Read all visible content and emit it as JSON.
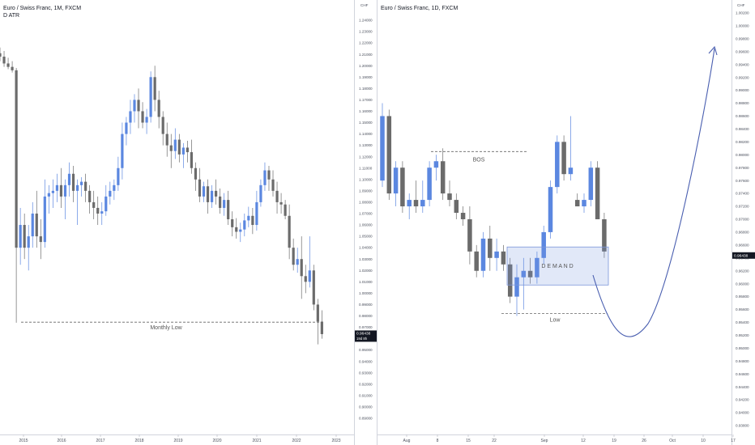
{
  "left_panel": {
    "title": "Euro / Swiss Franc, 1M, FXCM",
    "indicator": "D ATR",
    "price_badge": "0.96438",
    "countdown": "19d 8h",
    "annotation": "Monthly Low"
  },
  "right_panel": {
    "title": "Euro / Swiss Franc, 1D, FXCM",
    "currency": "CHF",
    "price_badge": "0.96438",
    "annotations": {
      "bos": "BOS",
      "demand": "D E M A N D",
      "low": "Low"
    }
  },
  "chart_data": [
    {
      "type": "candlestick",
      "title": "Euro / Swiss Franc, 1M, FXCM",
      "subtitle": "D ATR",
      "x_ticks": [
        "2015",
        "2016",
        "2017",
        "2018",
        "2019",
        "2020",
        "2021",
        "2022",
        "2023"
      ],
      "y_ticks": [
        "1.24000",
        "1.23000",
        "1.22000",
        "1.21000",
        "1.20000",
        "1.19000",
        "1.18000",
        "1.17000",
        "1.16000",
        "1.15000",
        "1.14000",
        "1.13000",
        "1.12000",
        "1.11000",
        "1.10000",
        "1.09000",
        "1.08000",
        "1.07000",
        "1.06000",
        "1.05000",
        "1.04000",
        "1.03000",
        "1.02000",
        "1.01000",
        "1.00000",
        "0.99000",
        "0.98000",
        "0.97000",
        "0.96000",
        "0.95000",
        "0.94000",
        "0.93000",
        "0.92000",
        "0.91000",
        "0.90000",
        "0.89000"
      ],
      "ylim": [
        0.885,
        1.245
      ],
      "monthly_low": 0.9745,
      "last_price": 0.96438,
      "candles": [
        [
          1.211,
          1.216,
          1.204,
          1.208
        ],
        [
          1.208,
          1.213,
          1.199,
          1.202
        ],
        [
          1.202,
          1.207,
          1.197,
          1.199
        ],
        [
          1.199,
          1.204,
          1.194,
          1.196
        ],
        [
          1.196,
          1.198,
          0.974,
          1.04
        ],
        [
          1.04,
          1.075,
          1.025,
          1.06
        ],
        [
          1.06,
          1.07,
          1.03,
          1.04
        ],
        [
          1.04,
          1.06,
          1.02,
          1.05
        ],
        [
          1.05,
          1.08,
          1.04,
          1.07
        ],
        [
          1.07,
          1.09,
          1.04,
          1.05
        ],
        [
          1.05,
          1.065,
          1.03,
          1.045
        ],
        [
          1.045,
          1.1,
          1.04,
          1.085
        ],
        [
          1.085,
          1.095,
          1.07,
          1.088
        ],
        [
          1.088,
          1.1,
          1.075,
          1.09
        ],
        [
          1.09,
          1.105,
          1.08,
          1.095
        ],
        [
          1.095,
          1.11,
          1.075,
          1.085
        ],
        [
          1.085,
          1.1,
          1.065,
          1.095
        ],
        [
          1.095,
          1.115,
          1.085,
          1.105
        ],
        [
          1.105,
          1.112,
          1.08,
          1.09
        ],
        [
          1.09,
          1.1,
          1.06,
          1.095
        ],
        [
          1.095,
          1.102,
          1.085,
          1.098
        ],
        [
          1.098,
          1.105,
          1.08,
          1.09
        ],
        [
          1.09,
          1.095,
          1.07,
          1.08
        ],
        [
          1.08,
          1.09,
          1.065,
          1.075
        ],
        [
          1.075,
          1.085,
          1.06,
          1.07
        ],
        [
          1.07,
          1.08,
          1.06,
          1.072
        ],
        [
          1.072,
          1.095,
          1.068,
          1.085
        ],
        [
          1.085,
          1.098,
          1.078,
          1.09
        ],
        [
          1.09,
          1.1,
          1.082,
          1.095
        ],
        [
          1.095,
          1.12,
          1.09,
          1.11
        ],
        [
          1.11,
          1.15,
          1.1,
          1.14
        ],
        [
          1.14,
          1.155,
          1.13,
          1.15
        ],
        [
          1.15,
          1.17,
          1.14,
          1.16
        ],
        [
          1.16,
          1.175,
          1.15,
          1.17
        ],
        [
          1.17,
          1.18,
          1.145,
          1.16
        ],
        [
          1.16,
          1.168,
          1.145,
          1.15
        ],
        [
          1.15,
          1.162,
          1.14,
          1.155
        ],
        [
          1.155,
          1.195,
          1.15,
          1.19
        ],
        [
          1.19,
          1.2,
          1.16,
          1.17
        ],
        [
          1.17,
          1.178,
          1.145,
          1.155
        ],
        [
          1.155,
          1.16,
          1.13,
          1.14
        ],
        [
          1.14,
          1.15,
          1.12,
          1.13
        ],
        [
          1.13,
          1.14,
          1.11,
          1.125
        ],
        [
          1.125,
          1.145,
          1.118,
          1.135
        ],
        [
          1.135,
          1.14,
          1.115,
          1.122
        ],
        [
          1.122,
          1.132,
          1.11,
          1.128
        ],
        [
          1.128,
          1.134,
          1.115,
          1.124
        ],
        [
          1.124,
          1.135,
          1.105,
          1.11
        ],
        [
          1.11,
          1.115,
          1.09,
          1.1
        ],
        [
          1.1,
          1.11,
          1.08,
          1.085
        ],
        [
          1.085,
          1.098,
          1.08,
          1.094
        ],
        [
          1.094,
          1.1,
          1.07,
          1.08
        ],
        [
          1.08,
          1.095,
          1.075,
          1.09
        ],
        [
          1.09,
          1.1,
          1.078,
          1.085
        ],
        [
          1.085,
          1.092,
          1.07,
          1.075
        ],
        [
          1.075,
          1.088,
          1.068,
          1.082
        ],
        [
          1.082,
          1.09,
          1.06,
          1.065
        ],
        [
          1.065,
          1.072,
          1.05,
          1.058
        ],
        [
          1.058,
          1.066,
          1.048,
          1.054
        ],
        [
          1.054,
          1.062,
          1.045,
          1.056
        ],
        [
          1.056,
          1.07,
          1.05,
          1.064
        ],
        [
          1.064,
          1.076,
          1.058,
          1.068
        ],
        [
          1.068,
          1.075,
          1.052,
          1.06
        ],
        [
          1.06,
          1.09,
          1.055,
          1.08
        ],
        [
          1.08,
          1.1,
          1.076,
          1.095
        ],
        [
          1.095,
          1.115,
          1.09,
          1.108
        ],
        [
          1.108,
          1.112,
          1.09,
          1.1
        ],
        [
          1.1,
          1.108,
          1.085,
          1.09
        ],
        [
          1.09,
          1.098,
          1.07,
          1.08
        ],
        [
          1.08,
          1.088,
          1.07,
          1.078
        ],
        [
          1.078,
          1.082,
          1.065,
          1.068
        ],
        [
          1.068,
          1.078,
          1.03,
          1.04
        ],
        [
          1.04,
          1.048,
          1.02,
          1.025
        ],
        [
          1.025,
          1.04,
          1.018,
          1.03
        ],
        [
          1.03,
          1.05,
          0.995,
          1.015
        ],
        [
          1.015,
          1.025,
          1.0,
          1.01
        ],
        [
          1.01,
          1.05,
          1.005,
          1.02
        ],
        [
          1.02,
          1.025,
          0.985,
          0.99
        ],
        [
          0.99,
          0.995,
          0.955,
          0.975
        ],
        [
          0.975,
          0.985,
          0.96,
          0.964
        ]
      ]
    },
    {
      "type": "candlestick",
      "title": "Euro / Swiss Franc, 1D, FXCM",
      "x_ticks": [
        "Aug",
        "8",
        "15",
        "22",
        "Sep",
        "12",
        "19",
        "26",
        "Oct",
        "10",
        "17"
      ],
      "y_ticks": [
        "1.00200",
        "1.00000",
        "0.99800",
        "0.99600",
        "0.99400",
        "0.99200",
        "0.99000",
        "0.98800",
        "0.98600",
        "0.98400",
        "0.98200",
        "0.98000",
        "0.97800",
        "0.97600",
        "0.97400",
        "0.97200",
        "0.97000",
        "0.96800",
        "0.96600",
        "0.96400",
        "0.96200",
        "0.96000",
        "0.95800",
        "0.95600",
        "0.95400",
        "0.95200",
        "0.95000",
        "0.94800",
        "0.94600",
        "0.94400",
        "0.94200",
        "0.94000",
        "0.93800"
      ],
      "ylim": [
        0.9375,
        1.0035
      ],
      "bos_level": 0.9805,
      "demand_zone": [
        0.9598,
        0.9657
      ],
      "low_level": 0.9554,
      "last_price": 0.96438,
      "candles": [
        [
          0.976,
          0.988,
          0.975,
          0.986
        ],
        [
          0.986,
          0.987,
          0.973,
          0.974
        ],
        [
          0.974,
          0.979,
          0.972,
          0.978
        ],
        [
          0.978,
          0.979,
          0.971,
          0.972
        ],
        [
          0.972,
          0.974,
          0.97,
          0.973
        ],
        [
          0.973,
          0.976,
          0.971,
          0.972
        ],
        [
          0.972,
          0.976,
          0.971,
          0.973
        ],
        [
          0.973,
          0.979,
          0.972,
          0.978
        ],
        [
          0.978,
          0.98,
          0.976,
          0.979
        ],
        [
          0.979,
          0.981,
          0.973,
          0.974
        ],
        [
          0.974,
          0.976,
          0.972,
          0.973
        ],
        [
          0.973,
          0.974,
          0.97,
          0.971
        ],
        [
          0.971,
          0.972,
          0.969,
          0.97
        ],
        [
          0.97,
          0.972,
          0.963,
          0.965
        ],
        [
          0.965,
          0.966,
          0.961,
          0.962
        ],
        [
          0.962,
          0.968,
          0.961,
          0.967
        ],
        [
          0.967,
          0.969,
          0.962,
          0.964
        ],
        [
          0.964,
          0.967,
          0.962,
          0.965
        ],
        [
          0.965,
          0.966,
          0.962,
          0.963
        ],
        [
          0.963,
          0.964,
          0.957,
          0.958
        ],
        [
          0.958,
          0.963,
          0.955,
          0.961
        ],
        [
          0.961,
          0.964,
          0.956,
          0.962
        ],
        [
          0.962,
          0.964,
          0.96,
          0.961
        ],
        [
          0.961,
          0.965,
          0.96,
          0.964
        ],
        [
          0.964,
          0.969,
          0.963,
          0.968
        ],
        [
          0.968,
          0.976,
          0.967,
          0.975
        ],
        [
          0.975,
          0.983,
          0.974,
          0.982
        ],
        [
          0.982,
          0.983,
          0.976,
          0.977
        ],
        [
          0.977,
          0.986,
          0.976,
          0.978
        ],
        [
          0.973,
          0.974,
          0.972,
          0.972
        ],
        [
          0.972,
          0.974,
          0.971,
          0.973
        ],
        [
          0.973,
          0.979,
          0.972,
          0.978
        ],
        [
          0.978,
          0.979,
          0.97,
          0.97
        ],
        [
          0.97,
          0.971,
          0.964,
          0.965
        ]
      ]
    }
  ]
}
